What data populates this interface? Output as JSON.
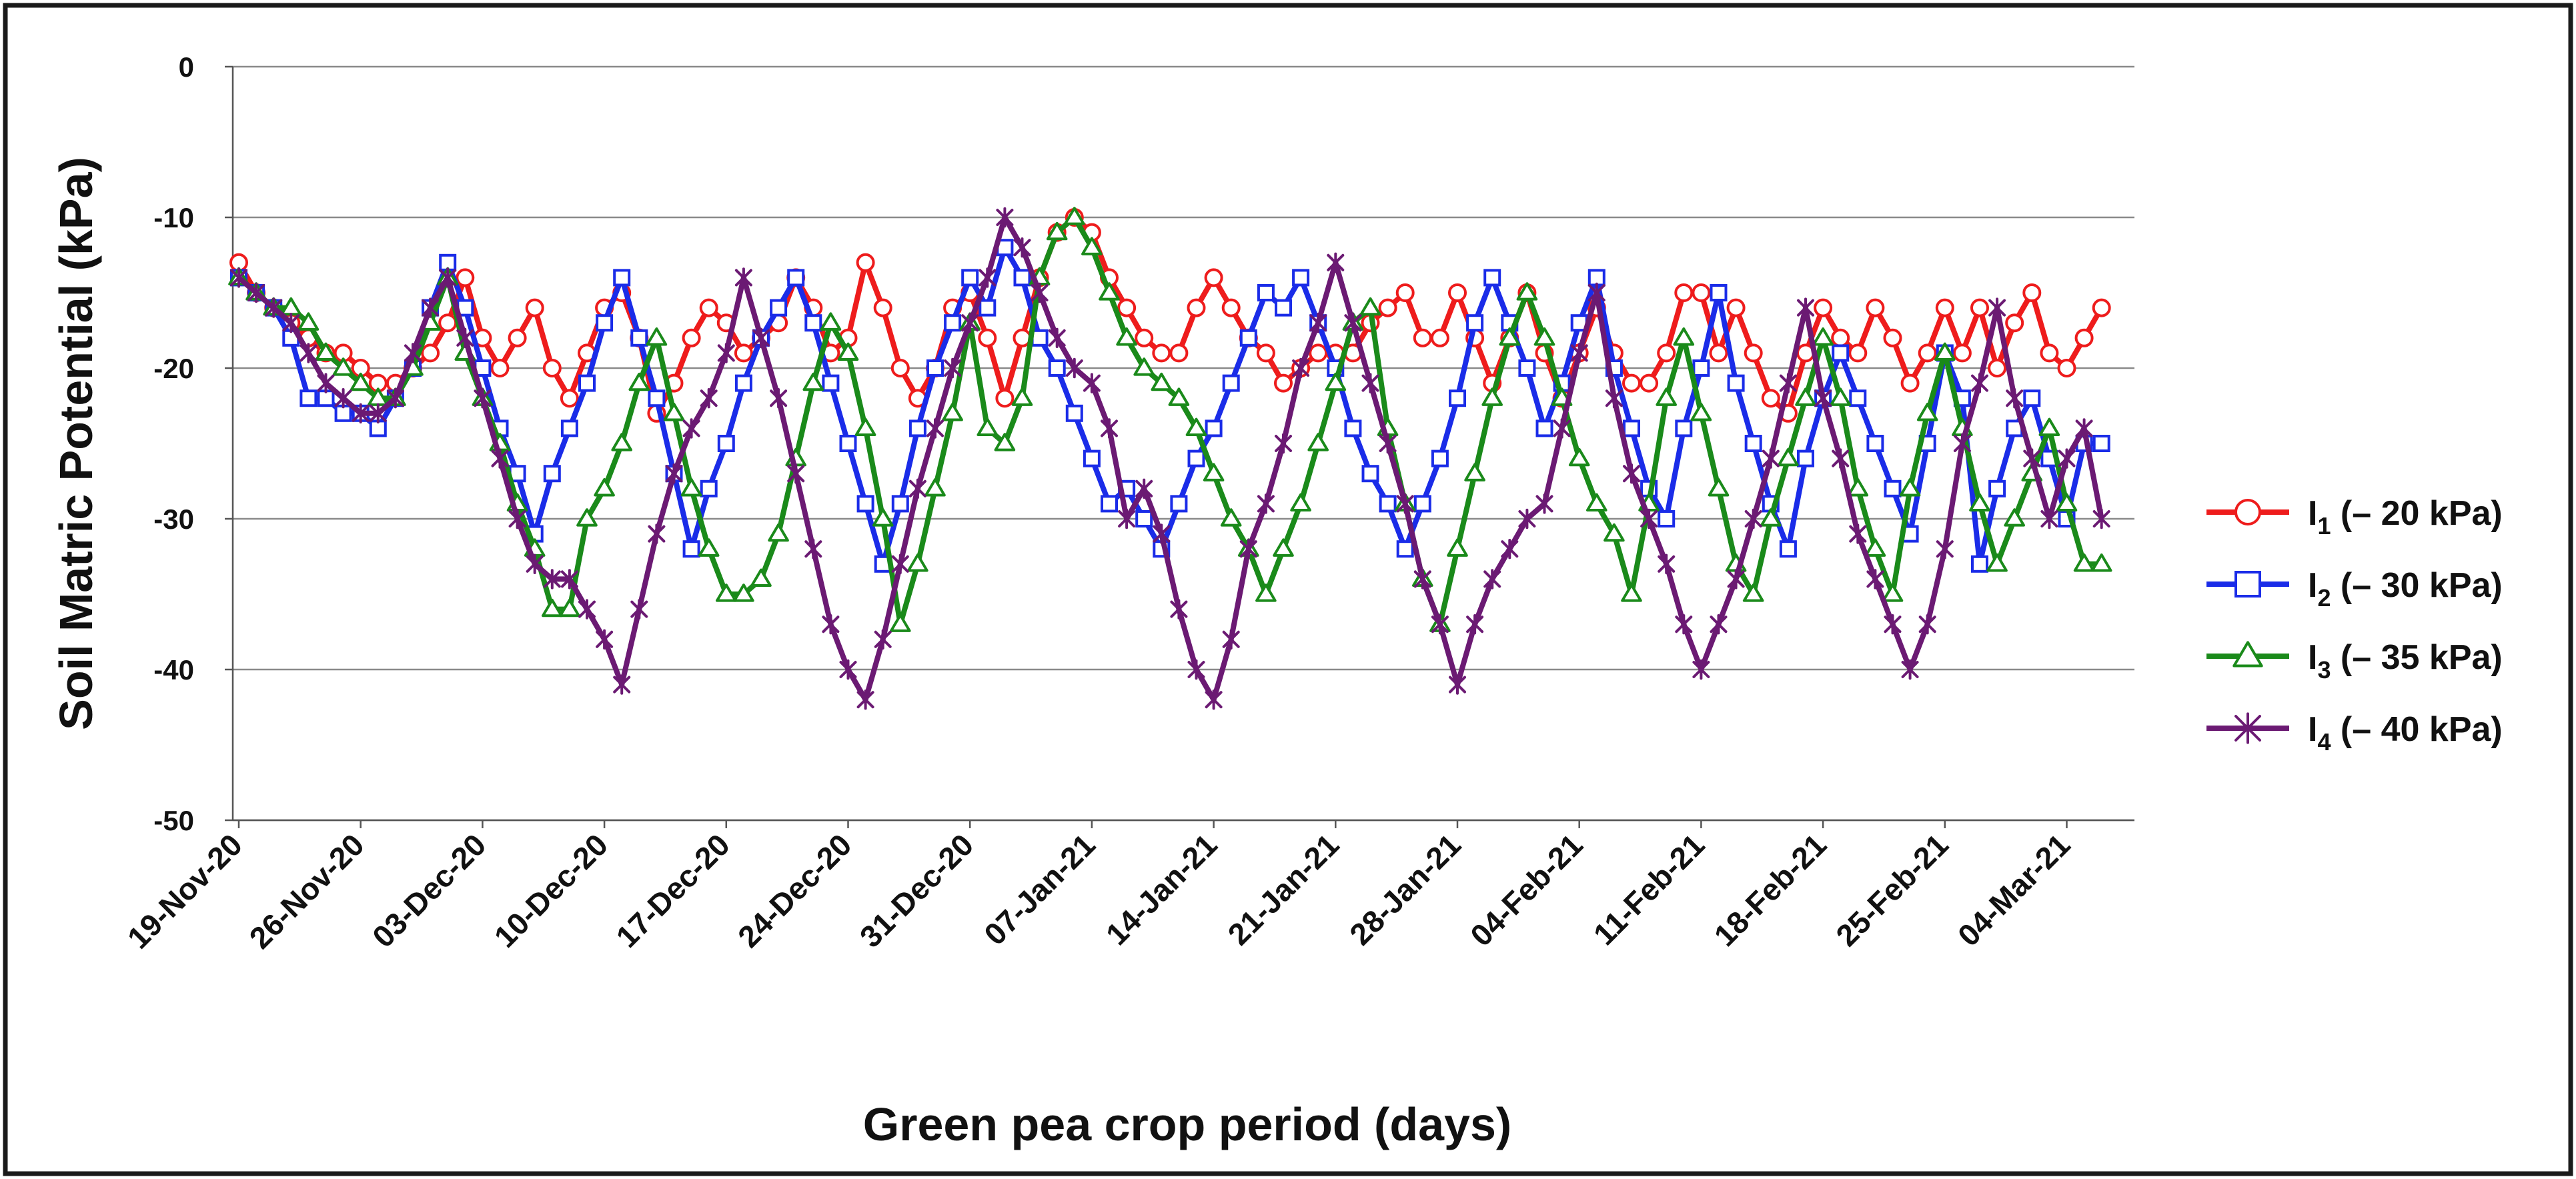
{
  "chart_data": {
    "type": "line",
    "title": "",
    "xlabel": "Green pea crop period (days)",
    "ylabel": "Soil Matric Potential (kPa)",
    "ylim": [
      -50,
      0
    ],
    "yticks": [
      0,
      -10,
      -20,
      -30,
      -40,
      -50
    ],
    "xlim": [
      0,
      107
    ],
    "x_tick_days": [
      0,
      7,
      14,
      21,
      28,
      35,
      42,
      49,
      56,
      63,
      70,
      77,
      84,
      91,
      98,
      105
    ],
    "x_tick_labels": [
      "19-Nov-20",
      "26-Nov-20",
      "03-Dec-20",
      "10-Dec-20",
      "17-Dec-20",
      "24-Dec-20",
      "31-Dec-20",
      "07-Jan-21",
      "14-Jan-21",
      "21-Jan-21",
      "28-Jan-21",
      "04-Feb-21",
      "11-Feb-21",
      "18-Feb-21",
      "25-Feb-21",
      "04-Mar-21"
    ],
    "grid": true,
    "legend_position": "right",
    "series": [
      {
        "name": "I1",
        "sub": "1",
        "legend_label": "I₁ (– 20 kPa)",
        "label_rest": " (– 20 kPa)",
        "color": "#ee1c1c",
        "marker": "circle",
        "x": [
          0,
          1,
          2,
          3,
          4,
          5,
          6,
          7,
          8,
          9,
          10,
          11,
          12,
          13,
          14,
          15,
          16,
          17,
          18,
          19,
          20,
          21,
          22,
          23,
          24,
          25,
          26,
          27,
          28,
          29,
          30,
          31,
          32,
          33,
          34,
          35,
          36,
          37,
          38,
          39,
          40,
          41,
          42,
          43,
          44,
          45,
          46,
          47,
          48,
          49,
          50,
          51,
          52,
          53,
          54,
          55,
          56,
          57,
          58,
          59,
          60,
          61,
          62,
          63,
          64,
          65,
          66,
          67,
          68,
          69,
          70,
          71,
          72,
          73,
          74,
          75,
          76,
          77,
          78,
          79,
          80,
          81,
          82,
          83,
          84,
          85,
          86,
          87,
          88,
          89,
          90,
          91,
          92,
          93,
          94,
          95,
          96,
          97,
          98,
          99,
          100,
          101,
          102,
          103,
          104,
          105,
          106,
          107
        ],
        "y": [
          -13,
          -15,
          -16,
          -17,
          -18,
          -19,
          -19,
          -20,
          -21,
          -21,
          -20,
          -19,
          -17,
          -14,
          -18,
          -20,
          -18,
          -16,
          -20,
          -22,
          -19,
          -16,
          -15,
          -18,
          -23,
          -21,
          -18,
          -16,
          -17,
          -19,
          -18,
          -17,
          -14,
          -16,
          -19,
          -18,
          -13,
          -16,
          -20,
          -22,
          -20,
          -16,
          -15,
          -18,
          -22,
          -18,
          -14,
          -11,
          -10,
          -11,
          -14,
          -16,
          -18,
          -19,
          -19,
          -16,
          -14,
          -16,
          -18,
          -19,
          -21,
          -20,
          -19,
          -19,
          -19,
          -17,
          -16,
          -15,
          -18,
          -18,
          -15,
          -18,
          -21,
          -18,
          -15,
          -19,
          -22,
          -19,
          -16,
          -19,
          -21,
          -21,
          -19,
          -15,
          -15,
          -19,
          -16,
          -19,
          -22,
          -23,
          -19,
          -16,
          -18,
          -19,
          -16,
          -18,
          -21,
          -19,
          -16,
          -19,
          -16,
          -20,
          -17,
          -15,
          -19,
          -20,
          -18,
          -16
        ]
      },
      {
        "name": "I2",
        "sub": "2",
        "legend_label": "I₂ (– 30 kPa)",
        "label_rest": " (– 30 kPa)",
        "color": "#1a2ce8",
        "marker": "square",
        "x": [
          0,
          1,
          2,
          3,
          4,
          5,
          6,
          7,
          8,
          9,
          10,
          11,
          12,
          13,
          14,
          15,
          16,
          17,
          18,
          19,
          20,
          21,
          22,
          23,
          24,
          25,
          26,
          27,
          28,
          29,
          30,
          31,
          32,
          33,
          34,
          35,
          36,
          37,
          38,
          39,
          40,
          41,
          42,
          43,
          44,
          45,
          46,
          47,
          48,
          49,
          50,
          51,
          52,
          53,
          54,
          55,
          56,
          57,
          58,
          59,
          60,
          61,
          62,
          63,
          64,
          65,
          66,
          67,
          68,
          69,
          70,
          71,
          72,
          73,
          74,
          75,
          76,
          77,
          78,
          79,
          80,
          81,
          82,
          83,
          84,
          85,
          86,
          87,
          88,
          89,
          90,
          91,
          92,
          93,
          94,
          95,
          96,
          97,
          98,
          99,
          100,
          101,
          102,
          103,
          104,
          105,
          106,
          107
        ],
        "y": [
          -14,
          -15,
          -16,
          -18,
          -22,
          -22,
          -23,
          -23,
          -24,
          -22,
          -20,
          -16,
          -13,
          -16,
          -20,
          -24,
          -27,
          -31,
          -27,
          -24,
          -21,
          -17,
          -14,
          -18,
          -22,
          -27,
          -32,
          -28,
          -25,
          -21,
          -18,
          -16,
          -14,
          -17,
          -21,
          -25,
          -29,
          -33,
          -29,
          -24,
          -20,
          -17,
          -14,
          -16,
          -12,
          -14,
          -18,
          -20,
          -23,
          -26,
          -29,
          -28,
          -30,
          -32,
          -29,
          -26,
          -24,
          -21,
          -18,
          -15,
          -16,
          -14,
          -17,
          -20,
          -24,
          -27,
          -29,
          -32,
          -29,
          -26,
          -22,
          -17,
          -14,
          -17,
          -20,
          -24,
          -21,
          -17,
          -14,
          -20,
          -24,
          -28,
          -30,
          -24,
          -20,
          -15,
          -21,
          -25,
          -29,
          -32,
          -26,
          -22,
          -19,
          -22,
          -25,
          -28,
          -31,
          -25,
          -19,
          -22,
          -33,
          -28,
          -24,
          -22,
          -26,
          -30,
          -25,
          -25
        ]
      },
      {
        "name": "I3",
        "sub": "3",
        "legend_label": "I₃ (– 35 kPa)",
        "label_rest": " (– 35 kPa)",
        "color": "#1a8a1a",
        "marker": "triangle",
        "x": [
          0,
          1,
          2,
          3,
          4,
          5,
          6,
          7,
          8,
          9,
          10,
          11,
          12,
          13,
          14,
          15,
          16,
          17,
          18,
          19,
          20,
          21,
          22,
          23,
          24,
          25,
          26,
          27,
          28,
          29,
          30,
          31,
          32,
          33,
          34,
          35,
          36,
          37,
          38,
          39,
          40,
          41,
          42,
          43,
          44,
          45,
          46,
          47,
          48,
          49,
          50,
          51,
          52,
          53,
          54,
          55,
          56,
          57,
          58,
          59,
          60,
          61,
          62,
          63,
          64,
          65,
          66,
          67,
          68,
          69,
          70,
          71,
          72,
          73,
          74,
          75,
          76,
          77,
          78,
          79,
          80,
          81,
          82,
          83,
          84,
          85,
          86,
          87,
          88,
          89,
          90,
          91,
          92,
          93,
          94,
          95,
          96,
          97,
          98,
          99,
          100,
          101,
          102,
          103,
          104,
          105,
          106,
          107
        ],
        "y": [
          -14,
          -15,
          -16,
          -16,
          -17,
          -19,
          -20,
          -21,
          -22,
          -22,
          -20,
          -17,
          -14,
          -19,
          -22,
          -25,
          -29,
          -32,
          -36,
          -36,
          -30,
          -28,
          -25,
          -21,
          -18,
          -23,
          -28,
          -32,
          -35,
          -35,
          -34,
          -31,
          -26,
          -21,
          -17,
          -19,
          -24,
          -30,
          -37,
          -33,
          -28,
          -23,
          -17,
          -24,
          -25,
          -22,
          -14,
          -11,
          -10,
          -12,
          -15,
          -18,
          -20,
          -21,
          -22,
          -24,
          -27,
          -30,
          -32,
          -35,
          -32,
          -29,
          -25,
          -21,
          -17,
          -16,
          -24,
          -29,
          -34,
          -37,
          -32,
          -27,
          -22,
          -18,
          -15,
          -18,
          -22,
          -26,
          -29,
          -31,
          -35,
          -29,
          -22,
          -18,
          -23,
          -28,
          -33,
          -35,
          -30,
          -26,
          -22,
          -18,
          -22,
          -28,
          -32,
          -35,
          -28,
          -23,
          -19,
          -24,
          -29,
          -33,
          -30,
          -27,
          -24,
          -29,
          -33,
          -33
        ]
      },
      {
        "name": "I4",
        "sub": "4",
        "legend_label": "I₄ (– 40 kPa)",
        "label_rest": " (– 40 kPa)",
        "color": "#6b1a73",
        "marker": "star",
        "x": [
          0,
          1,
          2,
          3,
          4,
          5,
          6,
          7,
          8,
          9,
          10,
          11,
          12,
          13,
          14,
          15,
          16,
          17,
          18,
          19,
          20,
          21,
          22,
          23,
          24,
          25,
          26,
          27,
          28,
          29,
          30,
          31,
          32,
          33,
          34,
          35,
          36,
          37,
          38,
          39,
          40,
          41,
          42,
          43,
          44,
          45,
          46,
          47,
          48,
          49,
          50,
          51,
          52,
          53,
          54,
          55,
          56,
          57,
          58,
          59,
          60,
          61,
          62,
          63,
          64,
          65,
          66,
          67,
          68,
          69,
          70,
          71,
          72,
          73,
          74,
          75,
          76,
          77,
          78,
          79,
          80,
          81,
          82,
          83,
          84,
          85,
          86,
          87,
          88,
          89,
          90,
          91,
          92,
          93,
          94,
          95,
          96,
          97,
          98,
          99,
          100,
          101,
          102,
          103,
          104,
          105,
          106,
          107
        ],
        "y": [
          -14,
          -15,
          -16,
          -17,
          -19,
          -21,
          -22,
          -23,
          -23,
          -22,
          -19,
          -16,
          -14,
          -18,
          -22,
          -26,
          -30,
          -33,
          -34,
          -34,
          -36,
          -38,
          -41,
          -36,
          -31,
          -27,
          -24,
          -22,
          -19,
          -14,
          -18,
          -22,
          -27,
          -32,
          -37,
          -40,
          -42,
          -38,
          -33,
          -28,
          -24,
          -20,
          -17,
          -14,
          -10,
          -12,
          -15,
          -18,
          -20,
          -21,
          -24,
          -30,
          -28,
          -31,
          -36,
          -40,
          -42,
          -38,
          -32,
          -29,
          -25,
          -20,
          -17,
          -13,
          -17,
          -21,
          -25,
          -29,
          -34,
          -37,
          -41,
          -37,
          -34,
          -32,
          -30,
          -29,
          -24,
          -19,
          -15,
          -22,
          -27,
          -30,
          -33,
          -37,
          -40,
          -37,
          -34,
          -30,
          -26,
          -21,
          -16,
          -22,
          -26,
          -31,
          -34,
          -37,
          -40,
          -37,
          -32,
          -25,
          -21,
          -16,
          -22,
          -26,
          -30,
          -26,
          -24,
          -30
        ]
      }
    ]
  }
}
